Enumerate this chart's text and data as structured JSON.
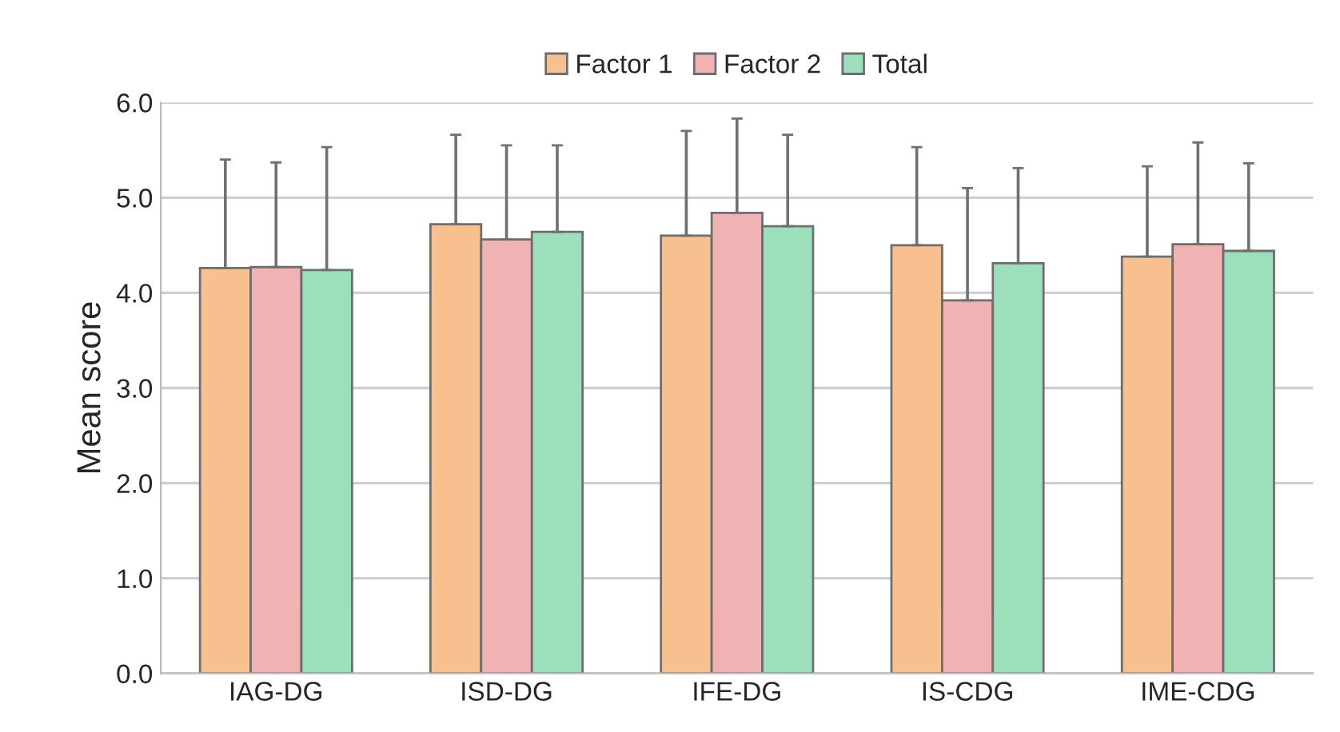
{
  "chart_data": {
    "type": "bar",
    "ylabel": "Mean score",
    "categories": [
      "IAG-DG",
      "ISD-DG",
      "IFE-DG",
      "IS-CDG",
      "IME-CDG"
    ],
    "series": [
      {
        "name": "Factor 1",
        "color": "#f9c08f",
        "values": [
          4.26,
          4.72,
          4.6,
          4.5,
          4.38
        ],
        "errors": [
          [
            4.26,
            5.4
          ],
          [
            4.72,
            5.66
          ],
          [
            4.6,
            5.7
          ],
          [
            4.5,
            5.53
          ],
          [
            4.38,
            5.33
          ]
        ]
      },
      {
        "name": "Factor 2",
        "color": "#f0b2b2",
        "values": [
          4.27,
          4.56,
          4.84,
          3.92,
          4.51
        ],
        "errors": [
          [
            4.27,
            5.37
          ],
          [
            4.56,
            5.55
          ],
          [
            4.84,
            5.83
          ],
          [
            3.92,
            5.1
          ],
          [
            4.51,
            5.58
          ]
        ]
      },
      {
        "name": "Total",
        "color": "#9be0bb",
        "values": [
          4.24,
          4.64,
          4.7,
          4.31,
          4.44
        ],
        "errors": [
          [
            4.24,
            5.53
          ],
          [
            4.64,
            5.55
          ],
          [
            4.7,
            5.66
          ],
          [
            4.31,
            5.31
          ],
          [
            4.44,
            5.36
          ]
        ]
      }
    ],
    "ylim": [
      0,
      6
    ],
    "yticks": [
      {
        "value": 0,
        "label": "0.0"
      },
      {
        "value": 1,
        "label": "1.0"
      },
      {
        "value": 2,
        "label": "2.0"
      },
      {
        "value": 3,
        "label": "3.0"
      },
      {
        "value": 4,
        "label": "4.0"
      },
      {
        "value": 5,
        "label": "5.0"
      },
      {
        "value": 6,
        "label": "6.0"
      }
    ],
    "grid": "y",
    "legend": "top"
  }
}
